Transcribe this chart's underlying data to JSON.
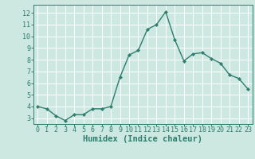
{
  "x": [
    0,
    1,
    2,
    3,
    4,
    5,
    6,
    7,
    8,
    9,
    10,
    11,
    12,
    13,
    14,
    15,
    16,
    17,
    18,
    19,
    20,
    21,
    22,
    23
  ],
  "y": [
    4.0,
    3.8,
    3.2,
    2.8,
    3.3,
    3.3,
    3.8,
    3.8,
    4.0,
    6.5,
    8.4,
    8.8,
    10.6,
    11.0,
    12.1,
    9.7,
    7.9,
    8.5,
    8.6,
    8.1,
    7.7,
    6.7,
    6.4,
    5.5
  ],
  "line_color": "#2e7d6e",
  "marker": "D",
  "marker_size": 2.2,
  "bg_color": "#cce8e0",
  "grid_color": "#ffffff",
  "axes_color": "#2e7d6e",
  "xlabel": "Humidex (Indice chaleur)",
  "xlabel_color": "#2e7d6e",
  "ylim": [
    2.5,
    12.7
  ],
  "xlim": [
    -0.5,
    23.5
  ],
  "yticks": [
    3,
    4,
    5,
    6,
    7,
    8,
    9,
    10,
    11,
    12
  ],
  "xticks": [
    0,
    1,
    2,
    3,
    4,
    5,
    6,
    7,
    8,
    9,
    10,
    11,
    12,
    13,
    14,
    15,
    16,
    17,
    18,
    19,
    20,
    21,
    22,
    23
  ],
  "tick_label_size": 6.0,
  "xlabel_size": 7.5,
  "lw": 1.0
}
